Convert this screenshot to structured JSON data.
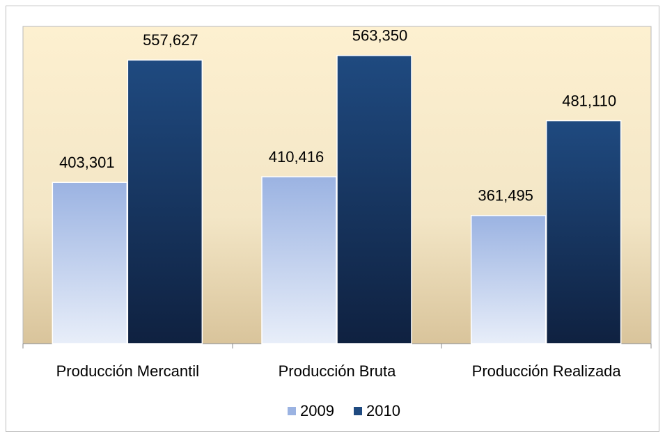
{
  "chart_data": {
    "type": "bar",
    "categories": [
      "Producción Mercantil",
      "Producción Bruta",
      "Producción Realizada"
    ],
    "series": [
      {
        "name": "2009",
        "color": "#9bb3e2",
        "values": [
          403301,
          410416,
          361495
        ],
        "value_labels": [
          "403,301",
          "410,416",
          "361,495"
        ]
      },
      {
        "name": "2010",
        "color": "#1f4a80",
        "values": [
          557627,
          563350,
          481110
        ],
        "value_labels": [
          "557,627",
          "563,350",
          "481,110"
        ]
      }
    ],
    "ylim": [
      200000,
      600000
    ],
    "legend": "bottom"
  }
}
